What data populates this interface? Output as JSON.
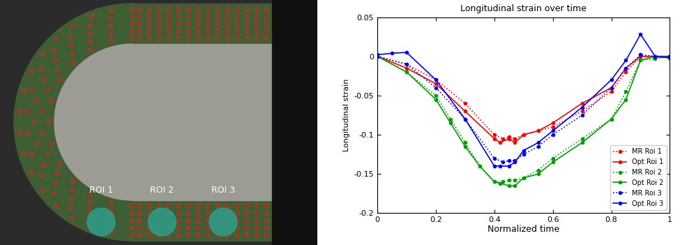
{
  "image": {
    "roi_labels": [
      "ROI 1",
      "ROI 2",
      "ROI 3"
    ]
  },
  "chart_data": {
    "type": "line",
    "title": "Longitudinal strain over time",
    "x_label": "Normalized time",
    "y_label": "Longitudinal strain",
    "xlim": [
      0,
      1
    ],
    "xticks": [
      0,
      0.2,
      0.4,
      0.6,
      0.8,
      1
    ],
    "ylim": [
      -0.2,
      0.05
    ],
    "yticks": [
      -0.2,
      -0.15,
      -0.1,
      -0.05,
      0,
      0.05
    ],
    "legend": "lower right",
    "series": [
      {
        "name": "MR Roi 1",
        "color": "#ff0000",
        "line_style": "dotted",
        "marker": "point",
        "x": [
          0,
          0.1,
          0.2,
          0.3,
          0.4,
          0.43,
          0.45,
          0.47,
          0.5,
          0.55,
          0.6,
          0.7,
          0.8,
          0.85,
          0.9,
          0.95,
          1
        ],
        "values": [
          0,
          -0.01,
          -0.03,
          -0.06,
          -0.1,
          -0.105,
          -0.103,
          -0.105,
          -0.1,
          -0.095,
          -0.09,
          -0.07,
          -0.045,
          -0.02,
          0,
          -0.002,
          0
        ]
      },
      {
        "name": "Opt Roi 1",
        "color": "#ff0000",
        "line_style": "solid",
        "marker": "point",
        "x": [
          0,
          0.1,
          0.2,
          0.3,
          0.4,
          0.42,
          0.45,
          0.47,
          0.5,
          0.55,
          0.6,
          0.7,
          0.8,
          0.85,
          0.9,
          1
        ],
        "values": [
          0,
          -0.015,
          -0.035,
          -0.07,
          -0.105,
          -0.11,
          -0.105,
          -0.11,
          -0.1,
          -0.095,
          -0.085,
          -0.06,
          -0.04,
          -0.015,
          0,
          0
        ]
      },
      {
        "name": "MR Roi 2",
        "color": "#00a000",
        "line_style": "dotted",
        "marker": "point",
        "x": [
          0,
          0.1,
          0.2,
          0.25,
          0.3,
          0.35,
          0.4,
          0.43,
          0.45,
          0.47,
          0.5,
          0.55,
          0.6,
          0.7,
          0.8,
          0.85,
          0.9,
          0.95,
          1
        ],
        "values": [
          0,
          -0.02,
          -0.05,
          -0.08,
          -0.11,
          -0.14,
          -0.16,
          -0.16,
          -0.158,
          -0.158,
          -0.155,
          -0.145,
          -0.13,
          -0.105,
          -0.08,
          -0.045,
          -0.005,
          -0.003,
          0
        ]
      },
      {
        "name": "Opt Roi 2",
        "color": "#00a000",
        "line_style": "solid",
        "marker": "point",
        "x": [
          0,
          0.1,
          0.2,
          0.25,
          0.3,
          0.35,
          0.4,
          0.42,
          0.45,
          0.47,
          0.5,
          0.55,
          0.6,
          0.7,
          0.8,
          0.85,
          0.9,
          0.95,
          1
        ],
        "values": [
          0,
          -0.02,
          -0.055,
          -0.085,
          -0.115,
          -0.14,
          -0.16,
          -0.162,
          -0.165,
          -0.165,
          -0.155,
          -0.15,
          -0.135,
          -0.11,
          -0.08,
          -0.055,
          -0.005,
          0,
          0
        ]
      },
      {
        "name": "MR Roi 3",
        "color": "#0000ff",
        "line_style": "dotted",
        "marker": "point",
        "x": [
          0,
          0.1,
          0.2,
          0.3,
          0.4,
          0.43,
          0.45,
          0.47,
          0.5,
          0.55,
          0.6,
          0.7,
          0.8,
          0.85,
          0.9,
          0.95,
          1
        ],
        "values": [
          0,
          -0.01,
          -0.04,
          -0.08,
          -0.13,
          -0.135,
          -0.133,
          -0.133,
          -0.125,
          -0.115,
          -0.1,
          -0.075,
          -0.04,
          -0.015,
          0.002,
          0,
          0
        ]
      },
      {
        "name": "Opt Roi 3",
        "color": "#0000ff",
        "line_style": "solid",
        "marker": "point",
        "x": [
          0,
          0.05,
          0.1,
          0.2,
          0.3,
          0.4,
          0.42,
          0.45,
          0.47,
          0.5,
          0.55,
          0.6,
          0.7,
          0.8,
          0.85,
          0.9,
          0.95,
          1
        ],
        "values": [
          0.002,
          0.004,
          0.005,
          -0.03,
          -0.08,
          -0.14,
          -0.14,
          -0.14,
          -0.135,
          -0.12,
          -0.11,
          -0.095,
          -0.065,
          -0.03,
          -0.005,
          0.028,
          0,
          -0.002
        ]
      }
    ]
  }
}
